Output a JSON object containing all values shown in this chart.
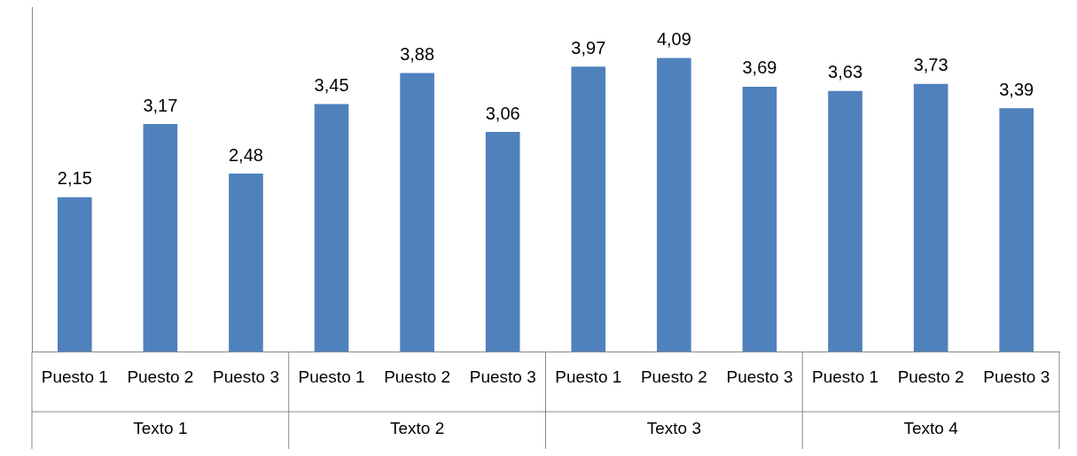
{
  "chart_data": {
    "type": "bar",
    "categories": [
      "Puesto 1",
      "Puesto 2",
      "Puesto 3",
      "Puesto 1",
      "Puesto 2",
      "Puesto 3",
      "Puesto 1",
      "Puesto 2",
      "Puesto 3",
      "Puesto 1",
      "Puesto 2",
      "Puesto 3"
    ],
    "values": [
      2.15,
      3.17,
      2.48,
      3.45,
      3.88,
      3.06,
      3.97,
      4.09,
      3.69,
      3.63,
      3.73,
      3.39
    ],
    "value_labels": [
      "2,15",
      "3,17",
      "2,48",
      "3,45",
      "3,88",
      "3,06",
      "3,97",
      "4,09",
      "3,69",
      "3,63",
      "3,73",
      "3,39"
    ],
    "color": "#4f81bd",
    "ylim": [
      0,
      4.8
    ],
    "tick_labels": "x",
    "grid": false,
    "legend": false,
    "annotations": [
      "Texto 1",
      "Texto 2",
      "Texto 3",
      "Texto 4"
    ]
  }
}
